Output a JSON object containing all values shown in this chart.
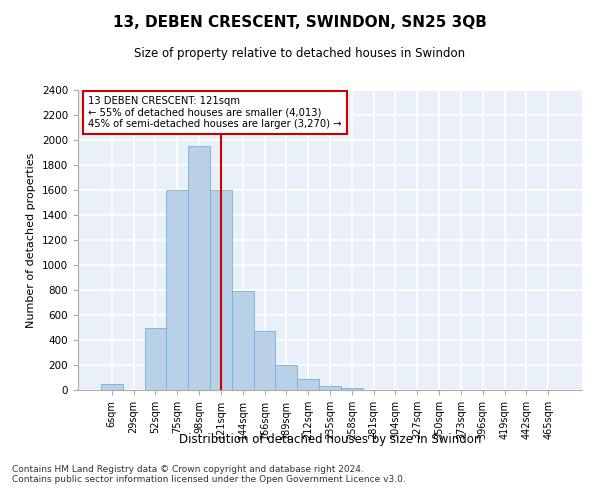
{
  "title": "13, DEBEN CRESCENT, SWINDON, SN25 3QB",
  "subtitle": "Size of property relative to detached houses in Swindon",
  "xlabel": "Distribution of detached houses by size in Swindon",
  "ylabel": "Number of detached properties",
  "categories": [
    "6sqm",
    "29sqm",
    "52sqm",
    "75sqm",
    "98sqm",
    "121sqm",
    "144sqm",
    "166sqm",
    "189sqm",
    "212sqm",
    "235sqm",
    "258sqm",
    "281sqm",
    "304sqm",
    "327sqm",
    "350sqm",
    "373sqm",
    "396sqm",
    "419sqm",
    "442sqm",
    "465sqm"
  ],
  "values": [
    50,
    0,
    500,
    1600,
    1950,
    1600,
    790,
    470,
    200,
    85,
    30,
    20,
    0,
    0,
    0,
    0,
    0,
    0,
    0,
    0,
    0
  ],
  "bar_color": "#b8d0e8",
  "bar_edge_color": "#7aafd4",
  "vline_x_index": 5,
  "vline_color": "#cc0000",
  "annotation_line1": "13 DEBEN CRESCENT: 121sqm",
  "annotation_line2": "← 55% of detached houses are smaller (4,013)",
  "annotation_line3": "45% of semi-detached houses are larger (3,270) →",
  "annotation_box_color": "white",
  "annotation_box_edge": "#cc0000",
  "ylim": [
    0,
    2400
  ],
  "yticks": [
    0,
    200,
    400,
    600,
    800,
    1000,
    1200,
    1400,
    1600,
    1800,
    2000,
    2200,
    2400
  ],
  "background_color": "#eaf0f8",
  "grid_color": "white",
  "footnote1": "Contains HM Land Registry data © Crown copyright and database right 2024.",
  "footnote2": "Contains public sector information licensed under the Open Government Licence v3.0."
}
